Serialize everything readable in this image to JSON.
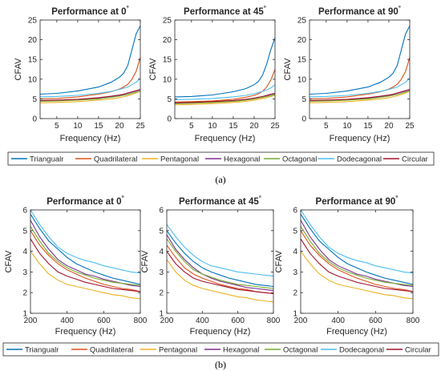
{
  "series_meta": [
    {
      "name": "Triangualr",
      "color": "#0072BD"
    },
    {
      "name": "Quadrilateral",
      "color": "#D95319"
    },
    {
      "name": "Pentagonal",
      "color": "#EDB120"
    },
    {
      "name": "Hexagonal",
      "color": "#7E2F8E"
    },
    {
      "name": "Octagonal",
      "color": "#77AC30"
    },
    {
      "name": "Dodecagonal",
      "color": "#4DBEEE"
    },
    {
      "name": "Circular",
      "color": "#A2142F"
    }
  ],
  "captions": [
    "(a)",
    "(b)"
  ],
  "chart_data": [
    {
      "type": "line",
      "panel": "a",
      "title": "Performance at 0",
      "title_superscript": "°",
      "xlabel": "Frequency (Hz)",
      "ylabel": "CFAV",
      "xlim": [
        1,
        25
      ],
      "ylim": [
        0,
        25
      ],
      "xticks": [
        5,
        10,
        15,
        20,
        25
      ],
      "yticks": [
        0,
        5,
        10,
        15,
        20,
        25
      ],
      "x": [
        1,
        5,
        10,
        15,
        18,
        20,
        21,
        22,
        23,
        24,
        25
      ],
      "series": [
        {
          "name": "Triangualr",
          "values": [
            6.2,
            6.4,
            7.0,
            8.0,
            9.2,
            10.5,
            11.5,
            13.5,
            17.5,
            21.5,
            23.5
          ]
        },
        {
          "name": "Quadrilateral",
          "values": [
            5.0,
            5.1,
            5.5,
            6.2,
            6.8,
            7.5,
            8.0,
            8.7,
            10.0,
            12.0,
            15.5
          ]
        },
        {
          "name": "Pentagonal",
          "values": [
            4.0,
            4.1,
            4.3,
            4.7,
            5.0,
            5.3,
            5.5,
            5.8,
            6.1,
            6.5,
            7.0
          ]
        },
        {
          "name": "Hexagonal",
          "values": [
            4.5,
            4.6,
            4.8,
            5.2,
            5.6,
            5.9,
            6.1,
            6.4,
            6.7,
            7.0,
            7.3
          ]
        },
        {
          "name": "Octagonal",
          "values": [
            4.4,
            4.5,
            4.7,
            5.0,
            5.4,
            5.7,
            5.9,
            6.1,
            6.4,
            6.7,
            7.0
          ]
        },
        {
          "name": "Dodecagonal",
          "values": [
            5.5,
            5.6,
            5.9,
            6.4,
            6.9,
            7.4,
            7.7,
            8.0,
            8.6,
            9.2,
            10.2
          ]
        },
        {
          "name": "Circular",
          "values": [
            4.6,
            4.7,
            4.9,
            5.3,
            5.7,
            6.0,
            6.2,
            6.5,
            6.8,
            7.1,
            7.4
          ]
        }
      ]
    },
    {
      "type": "line",
      "panel": "a",
      "title": "Performance at 45",
      "title_superscript": "°",
      "xlabel": "Frequency (Hz)",
      "ylabel": "CFAV",
      "xlim": [
        1,
        25
      ],
      "ylim": [
        0,
        25
      ],
      "xticks": [
        5,
        10,
        15,
        20,
        25
      ],
      "yticks": [
        0,
        5,
        10,
        15,
        20,
        25
      ],
      "x": [
        1,
        5,
        10,
        15,
        18,
        20,
        21,
        22,
        23,
        24,
        25
      ],
      "series": [
        {
          "name": "Triangualr",
          "values": [
            5.5,
            5.6,
            6.0,
            6.8,
            7.6,
            8.6,
            9.4,
            11.0,
            13.8,
            17.5,
            20.5
          ]
        },
        {
          "name": "Quadrilateral",
          "values": [
            4.2,
            4.3,
            4.5,
            4.9,
            5.4,
            5.9,
            6.3,
            6.9,
            8.0,
            9.8,
            12.5
          ]
        },
        {
          "name": "Pentagonal",
          "values": [
            3.5,
            3.6,
            3.8,
            4.1,
            4.4,
            4.7,
            4.9,
            5.1,
            5.3,
            5.6,
            5.9
          ]
        },
        {
          "name": "Hexagonal",
          "values": [
            3.9,
            4.0,
            4.2,
            4.5,
            4.8,
            5.1,
            5.3,
            5.5,
            5.8,
            6.1,
            6.3
          ]
        },
        {
          "name": "Octagonal",
          "values": [
            3.8,
            3.9,
            4.1,
            4.4,
            4.7,
            5.0,
            5.2,
            5.4,
            5.6,
            5.8,
            6.1
          ]
        },
        {
          "name": "Dodecagonal",
          "values": [
            4.8,
            4.9,
            5.1,
            5.5,
            5.9,
            6.3,
            6.6,
            6.9,
            7.3,
            7.8,
            8.5
          ]
        },
        {
          "name": "Circular",
          "values": [
            4.0,
            4.1,
            4.3,
            4.6,
            4.9,
            5.2,
            5.4,
            5.6,
            5.9,
            6.2,
            6.4
          ]
        }
      ]
    },
    {
      "type": "line",
      "panel": "a",
      "title": "Performance at 90",
      "title_superscript": "°",
      "xlabel": "Frequency (Hz)",
      "ylabel": "CFAV",
      "xlim": [
        1,
        25
      ],
      "ylim": [
        0,
        25
      ],
      "xticks": [
        5,
        10,
        15,
        20,
        25
      ],
      "yticks": [
        0,
        5,
        10,
        15,
        20,
        25
      ],
      "x": [
        1,
        5,
        10,
        15,
        18,
        20,
        21,
        22,
        23,
        24,
        25
      ],
      "series": [
        {
          "name": "Triangualr",
          "values": [
            6.2,
            6.4,
            7.0,
            8.0,
            9.2,
            10.5,
            11.5,
            13.5,
            17.5,
            21.5,
            23.5
          ]
        },
        {
          "name": "Quadrilateral",
          "values": [
            5.0,
            5.1,
            5.5,
            6.2,
            6.8,
            7.5,
            8.0,
            8.7,
            10.0,
            12.0,
            15.5
          ]
        },
        {
          "name": "Pentagonal",
          "values": [
            4.0,
            4.1,
            4.3,
            4.7,
            5.0,
            5.3,
            5.5,
            5.8,
            6.1,
            6.5,
            7.0
          ]
        },
        {
          "name": "Hexagonal",
          "values": [
            4.5,
            4.6,
            4.8,
            5.2,
            5.6,
            5.9,
            6.1,
            6.4,
            6.7,
            7.0,
            7.3
          ]
        },
        {
          "name": "Octagonal",
          "values": [
            4.4,
            4.5,
            4.7,
            5.0,
            5.4,
            5.7,
            5.9,
            6.1,
            6.4,
            6.7,
            7.0
          ]
        },
        {
          "name": "Dodecagonal",
          "values": [
            5.5,
            5.6,
            5.9,
            6.4,
            6.9,
            7.4,
            7.7,
            8.0,
            8.6,
            9.2,
            10.2
          ]
        },
        {
          "name": "Circular",
          "values": [
            4.6,
            4.7,
            4.9,
            5.3,
            5.7,
            6.0,
            6.2,
            6.5,
            6.8,
            7.1,
            7.4
          ]
        }
      ]
    },
    {
      "type": "line",
      "panel": "b",
      "title": "Performance at 0",
      "title_superscript": "°",
      "xlabel": "Frequency (Hz)",
      "ylabel": "CFAV",
      "xlim": [
        200,
        800
      ],
      "ylim": [
        1,
        6
      ],
      "xticks": [
        200,
        400,
        600,
        800
      ],
      "yticks": [
        1,
        2,
        3,
        4,
        5,
        6
      ],
      "x": [
        200,
        250,
        300,
        350,
        400,
        450,
        500,
        550,
        600,
        650,
        700,
        750,
        800
      ],
      "series": [
        {
          "name": "Triangualr",
          "values": [
            5.8,
            5.1,
            4.5,
            4.1,
            3.7,
            3.4,
            3.2,
            3.0,
            2.85,
            2.7,
            2.6,
            2.5,
            2.4
          ]
        },
        {
          "name": "Quadrilateral",
          "values": [
            5.0,
            4.3,
            3.8,
            3.4,
            3.1,
            2.9,
            2.7,
            2.55,
            2.4,
            2.3,
            2.2,
            2.15,
            2.05
          ]
        },
        {
          "name": "Pentagonal",
          "values": [
            4.0,
            3.4,
            2.9,
            2.6,
            2.4,
            2.3,
            2.2,
            2.1,
            2.0,
            1.9,
            1.85,
            1.75,
            1.7
          ]
        },
        {
          "name": "Hexagonal",
          "values": [
            5.5,
            4.7,
            4.1,
            3.6,
            3.3,
            3.1,
            2.9,
            2.8,
            2.65,
            2.55,
            2.45,
            2.35,
            2.3
          ]
        },
        {
          "name": "Octagonal",
          "values": [
            5.2,
            4.5,
            3.9,
            3.5,
            3.2,
            3.0,
            2.85,
            2.7,
            2.6,
            2.5,
            2.45,
            2.4,
            2.35
          ]
        },
        {
          "name": "Dodecagonal",
          "values": [
            6.0,
            5.3,
            4.7,
            4.2,
            3.9,
            3.7,
            3.55,
            3.45,
            3.3,
            3.2,
            3.1,
            3.0,
            2.95
          ]
        },
        {
          "name": "Circular",
          "values": [
            4.6,
            3.9,
            3.4,
            3.0,
            2.8,
            2.65,
            2.5,
            2.4,
            2.3,
            2.2,
            2.15,
            2.1,
            2.05
          ]
        }
      ]
    },
    {
      "type": "line",
      "panel": "b",
      "title": "Performance at 45",
      "title_superscript": "°",
      "xlabel": "Frequency (Hz)",
      "ylabel": "CFAV",
      "xlim": [
        200,
        800
      ],
      "ylim": [
        1,
        6
      ],
      "xticks": [
        200,
        400,
        600,
        800
      ],
      "yticks": [
        1,
        2,
        3,
        4,
        5,
        6
      ],
      "x": [
        200,
        250,
        300,
        350,
        400,
        450,
        500,
        550,
        600,
        650,
        700,
        750,
        800
      ],
      "series": [
        {
          "name": "Triangualr",
          "values": [
            5.0,
            4.4,
            3.9,
            3.5,
            3.2,
            3.0,
            2.85,
            2.7,
            2.6,
            2.5,
            2.4,
            2.35,
            2.3
          ]
        },
        {
          "name": "Quadrilateral",
          "values": [
            4.3,
            3.7,
            3.2,
            2.9,
            2.7,
            2.55,
            2.4,
            2.3,
            2.2,
            2.15,
            2.05,
            2.0,
            1.95
          ]
        },
        {
          "name": "Pentagonal",
          "values": [
            3.6,
            3.0,
            2.6,
            2.35,
            2.2,
            2.1,
            2.0,
            1.9,
            1.8,
            1.75,
            1.65,
            1.6,
            1.55
          ]
        },
        {
          "name": "Hexagonal",
          "values": [
            4.8,
            4.1,
            3.6,
            3.2,
            2.9,
            2.7,
            2.55,
            2.45,
            2.35,
            2.25,
            2.2,
            2.15,
            2.1
          ]
        },
        {
          "name": "Octagonal",
          "values": [
            4.6,
            4.0,
            3.5,
            3.1,
            2.9,
            2.75,
            2.6,
            2.5,
            2.4,
            2.35,
            2.3,
            2.25,
            2.2
          ]
        },
        {
          "name": "Dodecagonal",
          "values": [
            5.3,
            4.7,
            4.2,
            3.8,
            3.5,
            3.3,
            3.2,
            3.1,
            3.0,
            2.95,
            2.9,
            2.85,
            2.8
          ]
        },
        {
          "name": "Circular",
          "values": [
            4.0,
            3.4,
            3.0,
            2.7,
            2.55,
            2.45,
            2.35,
            2.25,
            2.15,
            2.1,
            2.05,
            2.0,
            1.95
          ]
        }
      ]
    },
    {
      "type": "line",
      "panel": "b",
      "title": "Performance at 90",
      "title_superscript": "°",
      "xlabel": "Frequency (Hz)",
      "ylabel": "CFAV",
      "xlim": [
        200,
        800
      ],
      "ylim": [
        1,
        6
      ],
      "xticks": [
        200,
        400,
        600,
        800
      ],
      "yticks": [
        1,
        2,
        3,
        4,
        5,
        6
      ],
      "x": [
        200,
        250,
        300,
        350,
        400,
        450,
        500,
        550,
        600,
        650,
        700,
        750,
        800
      ],
      "series": [
        {
          "name": "Triangualr",
          "values": [
            5.8,
            5.1,
            4.5,
            4.1,
            3.7,
            3.4,
            3.2,
            3.0,
            2.85,
            2.7,
            2.6,
            2.5,
            2.4
          ]
        },
        {
          "name": "Quadrilateral",
          "values": [
            5.0,
            4.3,
            3.8,
            3.4,
            3.1,
            2.9,
            2.7,
            2.55,
            2.4,
            2.3,
            2.2,
            2.15,
            2.05
          ]
        },
        {
          "name": "Pentagonal",
          "values": [
            4.0,
            3.4,
            2.9,
            2.6,
            2.4,
            2.3,
            2.2,
            2.1,
            2.0,
            1.9,
            1.85,
            1.75,
            1.7
          ]
        },
        {
          "name": "Hexagonal",
          "values": [
            5.5,
            4.7,
            4.1,
            3.6,
            3.3,
            3.1,
            2.9,
            2.8,
            2.65,
            2.55,
            2.45,
            2.35,
            2.3
          ]
        },
        {
          "name": "Octagonal",
          "values": [
            5.2,
            4.5,
            3.9,
            3.5,
            3.2,
            3.0,
            2.85,
            2.7,
            2.6,
            2.5,
            2.45,
            2.4,
            2.35
          ]
        },
        {
          "name": "Dodecagonal",
          "values": [
            6.0,
            5.3,
            4.7,
            4.2,
            3.9,
            3.7,
            3.55,
            3.45,
            3.3,
            3.2,
            3.1,
            3.0,
            2.95
          ]
        },
        {
          "name": "Circular",
          "values": [
            4.6,
            3.9,
            3.4,
            3.0,
            2.8,
            2.65,
            2.5,
            2.4,
            2.3,
            2.2,
            2.15,
            2.1,
            2.05
          ]
        }
      ]
    }
  ]
}
